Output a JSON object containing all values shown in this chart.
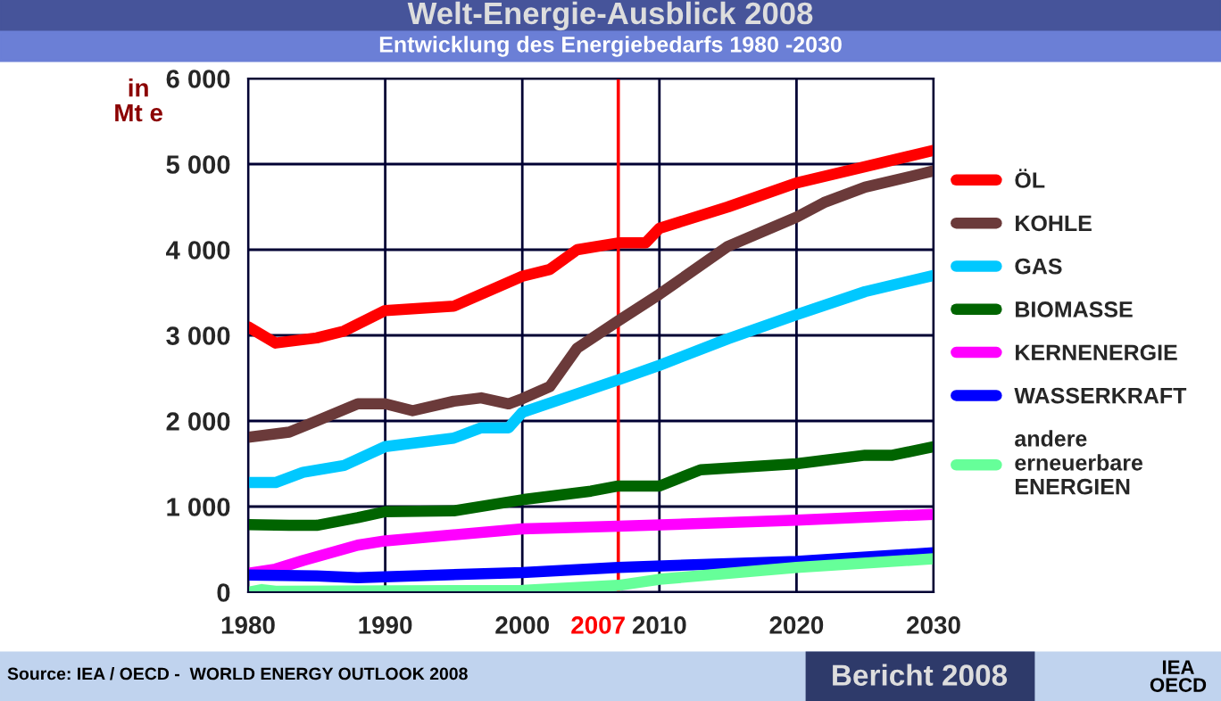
{
  "chart_data": {
    "type": "line",
    "title": "Welt-Energie-Ausblick 2008",
    "subtitle": "Entwicklung des Energiebedarfs 1980 -2030",
    "ylabel": "in\nMt e",
    "annotations": [
      "Source: IEA / OECD -  WORLD ENERGY OUTLOOK 2008",
      "Bericht 2008",
      "IEA\nOECD"
    ],
    "xlim": [
      1980,
      2030
    ],
    "xticks": [
      1980,
      1990,
      2000,
      2010,
      2020,
      2030
    ],
    "ylim": [
      0,
      6000
    ],
    "yticks": [
      {
        "value": 0,
        "label": "0"
      },
      {
        "value": 1000,
        "label": "1 000"
      },
      {
        "value": 2000,
        "label": "2 000"
      },
      {
        "value": 3000,
        "label": "3 000"
      },
      {
        "value": 4000,
        "label": "4 000"
      },
      {
        "value": 5000,
        "label": "5 000"
      },
      {
        "value": 6000,
        "label": "6 000"
      }
    ],
    "grid": true,
    "legend": "right",
    "line_style": "solid",
    "marker": "none",
    "ref_lines": [
      {
        "axis": "x",
        "value": 2007,
        "label": "2007",
        "color": "#ff0000"
      }
    ],
    "series": [
      {
        "name": "ÖL",
        "color": "#ff0000",
        "x": [
          1980,
          1982,
          1985,
          1987,
          1990,
          1995,
          2000,
          2002,
          2004,
          2007,
          2009,
          2010,
          2015,
          2020,
          2025,
          2030
        ],
        "values": [
          3100,
          2910,
          2970,
          3050,
          3290,
          3340,
          3690,
          3770,
          4000,
          4080,
          4080,
          4250,
          4500,
          4780,
          4970,
          5160
        ]
      },
      {
        "name": "KOHLE",
        "color": "#6b3a3a",
        "x": [
          1980,
          1983,
          1985,
          1988,
          1990,
          1992,
          1995,
          1997,
          1999,
          2000,
          2002,
          2004,
          2007,
          2010,
          2015,
          2020,
          2022,
          2025,
          2030
        ],
        "values": [
          1810,
          1870,
          2000,
          2200,
          2200,
          2120,
          2230,
          2270,
          2200,
          2260,
          2400,
          2850,
          3170,
          3480,
          4040,
          4380,
          4550,
          4730,
          4920
        ]
      },
      {
        "name": "GAS",
        "color": "#00c8ff",
        "x": [
          1980,
          1982,
          1984,
          1987,
          1990,
          1995,
          1997,
          1999,
          2000,
          2007,
          2010,
          2015,
          2020,
          2025,
          2030
        ],
        "values": [
          1280,
          1280,
          1400,
          1480,
          1700,
          1800,
          1920,
          1920,
          2100,
          2480,
          2650,
          2960,
          3240,
          3510,
          3700
        ]
      },
      {
        "name": "BIOMASSE",
        "color": "#006400",
        "x": [
          1980,
          1983,
          1985,
          1988,
          1990,
          1995,
          2000,
          2005,
          2007,
          2010,
          2013,
          2020,
          2025,
          2027,
          2030
        ],
        "values": [
          790,
          780,
          780,
          870,
          940,
          950,
          1080,
          1180,
          1240,
          1240,
          1430,
          1500,
          1600,
          1600,
          1700
        ]
      },
      {
        "name": "KERNENERGIE",
        "color": "#ff00ff",
        "x": [
          1980,
          1982,
          1984,
          1988,
          1990,
          2000,
          2007,
          2020,
          2030
        ],
        "values": [
          220,
          270,
          370,
          550,
          600,
          740,
          770,
          840,
          910
        ]
      },
      {
        "name": "WASSERKRAFT",
        "color": "#0000ff",
        "x": [
          1980,
          1985,
          1988,
          1990,
          2000,
          2007,
          2020,
          2030
        ],
        "values": [
          200,
          190,
          170,
          180,
          230,
          290,
          360,
          460
        ]
      },
      {
        "name": "andere\nerneuerbare\nENERGIEN",
        "color": "#66ff99",
        "x": [
          1980,
          1981,
          1982,
          2000,
          2007,
          2010,
          2020,
          2030
        ],
        "values": [
          0,
          30,
          10,
          20,
          80,
          150,
          290,
          390
        ]
      }
    ]
  }
}
